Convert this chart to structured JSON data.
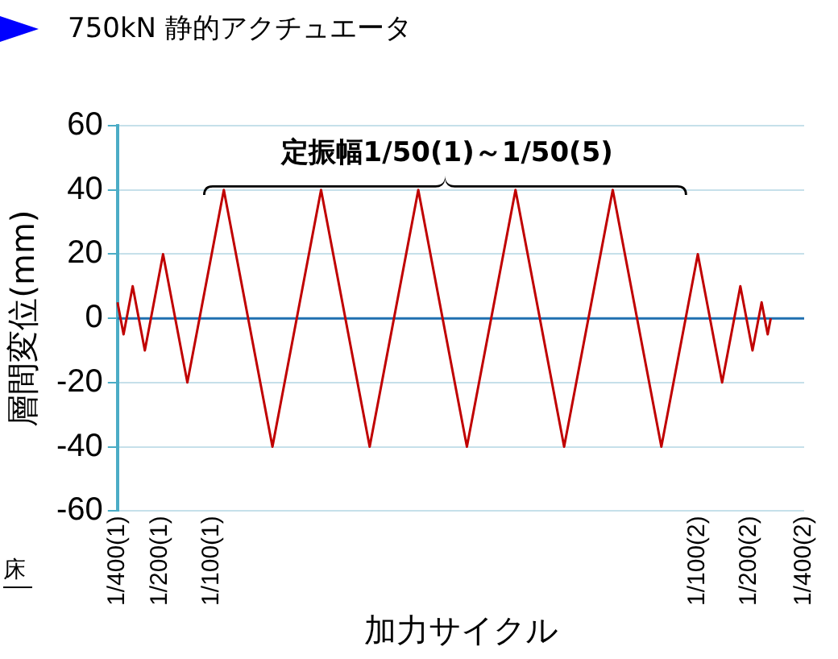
{
  "chart_data": {
    "type": "line",
    "title": "750kN 静的アクチュエータ",
    "xlabel": "加力サイクル",
    "ylabel": "層間変位(mm)",
    "categories": [
      "1/400(1)",
      null,
      null,
      null,
      null,
      null,
      null,
      null,
      null,
      null,
      null,
      null,
      null,
      null,
      "1/200(1)",
      null,
      null,
      null,
      null,
      null,
      null,
      null,
      null,
      null,
      null,
      null,
      null,
      null,
      null,
      null,
      null,
      "1/100(1)",
      null,
      null,
      null,
      null,
      null,
      null,
      null,
      null,
      null,
      null,
      null,
      null,
      null,
      null,
      null,
      null,
      null,
      null,
      null,
      null,
      null,
      null,
      null,
      null,
      null,
      null,
      null,
      null,
      null,
      null,
      null,
      null,
      null,
      null,
      null,
      null,
      null,
      null,
      null,
      null,
      null,
      null,
      null,
      null,
      null,
      null,
      null,
      null,
      null,
      null,
      null,
      null,
      null,
      null,
      null,
      null,
      null,
      null,
      null,
      null,
      null,
      null,
      null,
      null,
      null,
      null,
      null,
      null,
      null,
      null,
      null,
      null,
      null,
      null,
      null,
      null,
      null,
      null,
      null,
      null,
      null,
      null,
      null,
      null,
      null,
      null,
      null,
      null,
      null,
      null,
      null,
      null,
      null,
      null,
      null,
      null,
      null,
      null,
      null,
      null,
      null,
      null,
      null,
      null,
      null,
      null,
      null,
      null,
      null,
      null,
      null,
      null,
      null,
      null,
      null,
      null,
      null,
      null,
      null,
      null,
      null,
      null,
      null,
      null,
      null,
      null,
      null,
      null,
      null,
      null,
      null,
      null,
      null,
      null,
      null,
      null,
      null,
      null,
      null,
      null,
      null,
      null,
      null,
      null,
      null,
      null,
      null,
      null,
      null,
      null,
      null,
      null,
      null,
      null,
      null,
      null,
      null,
      null,
      null,
      "1/100(2)",
      null,
      null,
      null,
      null,
      null,
      null,
      null,
      null,
      null,
      null,
      null,
      null,
      null,
      null,
      null,
      null,
      "1/200(2)",
      null,
      null,
      null,
      null,
      null,
      null,
      null,
      null,
      null,
      null,
      null,
      null,
      null,
      null,
      null,
      null,
      null,
      "1/400(2)"
    ],
    "series": [
      {
        "color": "#c00000",
        "values": [
          5,
          null,
          -5,
          null,
          null,
          10,
          null,
          null,
          null,
          -10,
          null,
          null,
          null,
          null,
          null,
          20,
          null,
          null,
          null,
          null,
          null,
          null,
          null,
          -20,
          null,
          null,
          null,
          null,
          null,
          null,
          null,
          null,
          null,
          null,
          null,
          40,
          null,
          null,
          null,
          null,
          null,
          null,
          null,
          null,
          null,
          null,
          null,
          null,
          null,
          null,
          null,
          -40,
          null,
          null,
          null,
          null,
          null,
          null,
          null,
          null,
          null,
          null,
          null,
          null,
          null,
          null,
          null,
          40,
          null,
          null,
          null,
          null,
          null,
          null,
          null,
          null,
          null,
          null,
          null,
          null,
          null,
          null,
          null,
          -40,
          null,
          null,
          null,
          null,
          null,
          null,
          null,
          null,
          null,
          null,
          null,
          null,
          null,
          null,
          null,
          40,
          null,
          null,
          null,
          null,
          null,
          null,
          null,
          null,
          null,
          null,
          null,
          null,
          null,
          null,
          null,
          -40,
          null,
          null,
          null,
          null,
          null,
          null,
          null,
          null,
          null,
          null,
          null,
          null,
          null,
          null,
          null,
          40,
          null,
          null,
          null,
          null,
          null,
          null,
          null,
          null,
          null,
          null,
          null,
          null,
          null,
          null,
          null,
          -40,
          null,
          null,
          null,
          null,
          null,
          null,
          null,
          null,
          null,
          null,
          null,
          null,
          null,
          null,
          null,
          40,
          null,
          null,
          null,
          null,
          null,
          null,
          null,
          null,
          null,
          null,
          null,
          null,
          null,
          null,
          null,
          -40,
          null,
          null,
          null,
          null,
          null,
          null,
          null,
          null,
          null,
          null,
          null,
          20,
          null,
          null,
          null,
          null,
          null,
          null,
          null,
          -20,
          null,
          null,
          null,
          null,
          null,
          10,
          null,
          null,
          null,
          -10,
          null,
          null,
          5,
          null,
          -5,
          0,
          null,
          null,
          null,
          null,
          null,
          null,
          null,
          null,
          null,
          null,
          null
        ]
      }
    ],
    "ylim": [
      -60,
      60
    ],
    "yticks": [
      -60,
      -40,
      -20,
      0,
      20,
      40,
      60
    ],
    "grid": "y",
    "legend": false,
    "marker": "none",
    "line_style": "solid",
    "ref_lines": [
      {
        "axis": "y",
        "value": 0,
        "color": "#1f6fb0"
      }
    ],
    "annotations": [
      "定振幅1/50(1)～1/50(5)",
      "床"
    ]
  }
}
